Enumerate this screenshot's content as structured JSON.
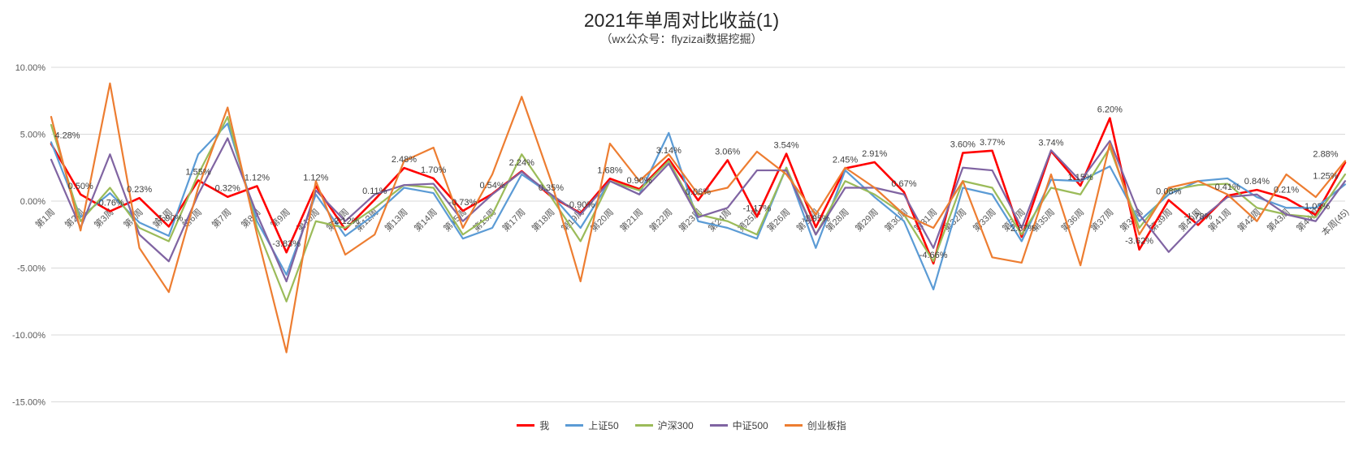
{
  "chart_data": {
    "type": "line",
    "title": "2021年单周对比收益(1)",
    "subtitle": "（wx公众号：flyzizai数据挖掘）",
    "legend_position": "bottom",
    "grid": true,
    "y_axis": {
      "min": -15,
      "max": 10,
      "ticks": [
        10,
        5,
        0,
        -5,
        -10,
        -15
      ],
      "format": "percent"
    },
    "categories": [
      "第1周",
      "第2周",
      "第3周",
      "第4周",
      "第5周",
      "第6周",
      "第7周",
      "第8周",
      "第9周",
      "第10周",
      "第11周",
      "第12周",
      "第13周",
      "第14周",
      "第15周",
      "第16周",
      "第17周",
      "第18周",
      "第19周",
      "第20周",
      "第21周",
      "第22周",
      "第23周",
      "第24周",
      "第25周",
      "第26周",
      "第27周",
      "第28周",
      "第29周",
      "第30周",
      "第31周",
      "第32周",
      "第33周",
      "第34周",
      "第35周",
      "第36周",
      "第37周",
      "第38周",
      "第39周",
      "第40周",
      "第41周",
      "第42周",
      "第43周",
      "第44周",
      "本周(45)"
    ],
    "series": [
      {
        "name": "我",
        "color": "#FF0000",
        "data_labels": true,
        "values": [
          4.28,
          0.5,
          -0.76,
          0.23,
          -1.9,
          1.55,
          0.32,
          1.12,
          -3.83,
          1.12,
          -2.12,
          0.11,
          2.48,
          1.7,
          -0.73,
          0.54,
          2.24,
          0.35,
          -0.9,
          1.68,
          0.9,
          3.14,
          0.06,
          3.06,
          -1.17,
          3.54,
          -1.95,
          2.45,
          2.91,
          0.67,
          -4.66,
          3.6,
          3.77,
          -2.67,
          3.74,
          1.15,
          6.2,
          -3.62,
          0.08,
          -1.78,
          0.41,
          0.84,
          0.21,
          -1.03,
          2.88
        ]
      },
      {
        "name": "上证50",
        "color": "#5B9BD5",
        "last_label": true,
        "values": [
          4.4,
          -1.2,
          0.6,
          -1.6,
          -2.6,
          3.5,
          5.8,
          -1.5,
          -5.5,
          0.5,
          -2.6,
          -1.0,
          1.0,
          0.6,
          -2.8,
          -2.0,
          2.0,
          0.5,
          -2.0,
          1.5,
          0.5,
          5.1,
          -1.5,
          -2.0,
          -2.8,
          2.5,
          -3.5,
          2.3,
          0.3,
          -1.5,
          -6.6,
          1.0,
          0.5,
          -3.0,
          1.6,
          1.5,
          2.6,
          -1.5,
          0.5,
          1.5,
          1.7,
          0.3,
          -0.5,
          -0.5,
          1.25
        ]
      },
      {
        "name": "沪深300",
        "color": "#9BBB59",
        "values": [
          5.7,
          -1.5,
          1.0,
          -2.0,
          -3.0,
          2.0,
          6.3,
          -2.0,
          -7.5,
          -1.5,
          -2.0,
          -0.5,
          1.2,
          1.0,
          -2.5,
          -1.0,
          3.5,
          0.3,
          -3.0,
          1.5,
          0.8,
          3.0,
          -1.0,
          -1.5,
          -2.5,
          2.5,
          -2.5,
          1.5,
          0.5,
          -1.0,
          -4.5,
          1.5,
          1.0,
          -2.5,
          1.0,
          0.5,
          4.0,
          -2.0,
          0.8,
          1.2,
          1.3,
          -0.5,
          -1.0,
          -1.2,
          2.0
        ]
      },
      {
        "name": "中证500",
        "color": "#8064A2",
        "values": [
          3.1,
          -2.0,
          3.5,
          -2.5,
          -4.5,
          0.5,
          4.7,
          -1.0,
          -6.0,
          0.8,
          -1.5,
          0.5,
          1.2,
          1.3,
          -1.5,
          0.5,
          2.2,
          0.5,
          -1.0,
          1.5,
          0.5,
          2.8,
          -1.2,
          -0.5,
          2.3,
          2.3,
          -2.5,
          1.0,
          1.0,
          0.5,
          -3.5,
          2.5,
          2.3,
          -2.0,
          3.8,
          1.5,
          4.5,
          -1.0,
          -3.8,
          -1.5,
          0.3,
          0.5,
          -1.0,
          -1.5,
          1.5
        ]
      },
      {
        "name": "创业板指",
        "color": "#ED7D31",
        "values": [
          6.3,
          -2.2,
          8.8,
          -3.5,
          -6.8,
          1.0,
          7.0,
          -2.5,
          -11.3,
          1.5,
          -4.0,
          -2.5,
          3.0,
          4.0,
          -2.0,
          2.0,
          7.8,
          1.5,
          -6.0,
          4.3,
          1.5,
          3.5,
          0.5,
          1.0,
          3.7,
          2.0,
          -1.0,
          2.5,
          1.0,
          -1.0,
          -2.0,
          1.5,
          -4.2,
          -4.6,
          2.0,
          -4.8,
          4.3,
          -2.5,
          1.0,
          1.5,
          0.5,
          -1.5,
          2.0,
          0.3,
          3.0
        ]
      }
    ],
    "colors": {
      "gridline": "#D9D9D9",
      "axis_text": "#595959",
      "label_text": "#404040"
    }
  }
}
